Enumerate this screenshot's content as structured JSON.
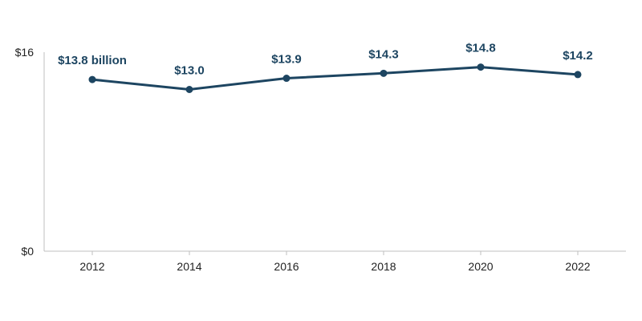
{
  "colors": {
    "series": "#1d4561",
    "axis": "#bfbfbf",
    "text": "#222222"
  },
  "chart_data": {
    "type": "line",
    "title": "",
    "xlabel": "",
    "ylabel": "",
    "x": [
      2012,
      2014,
      2016,
      2018,
      2020,
      2022
    ],
    "values": [
      13.8,
      13.0,
      13.9,
      14.3,
      14.8,
      14.2
    ],
    "data_labels": [
      "$13.8 billion",
      "$13.0",
      "$13.9",
      "$14.3",
      "$14.8",
      "$14.2"
    ],
    "x_tick_labels": [
      "2012",
      "2014",
      "2016",
      "2018",
      "2020",
      "2022"
    ],
    "y_tick_labels": [
      "$16",
      "$0"
    ],
    "y_ticks": [
      16,
      0
    ],
    "ylim": [
      0,
      16
    ],
    "grid": false,
    "legend": "none"
  }
}
